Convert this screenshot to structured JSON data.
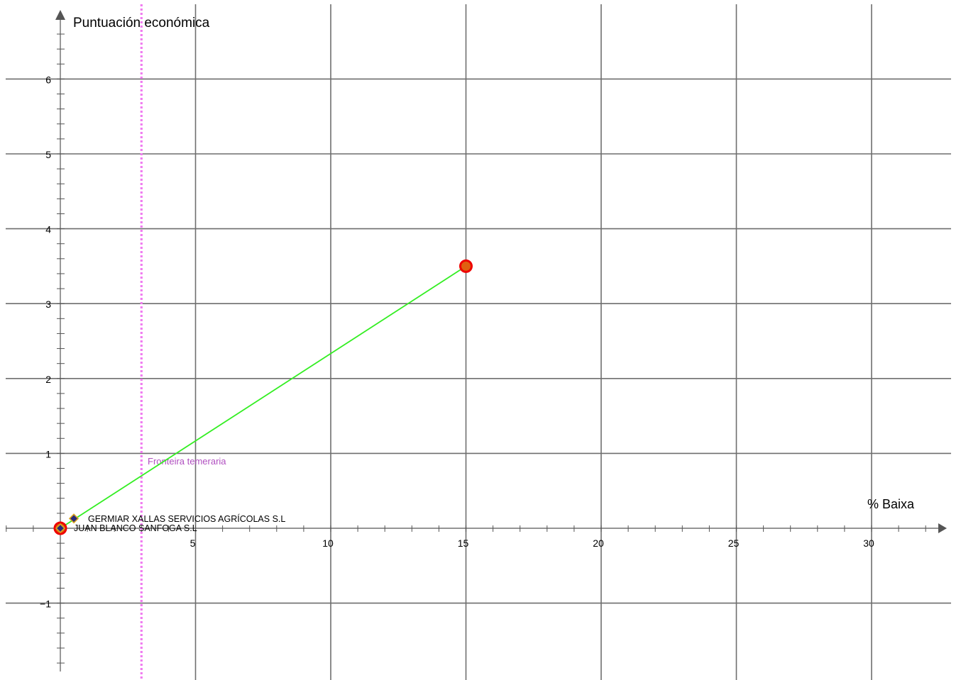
{
  "chart_data": {
    "type": "line",
    "xlabel": "% Baixa",
    "ylabel": "Puntuación económica",
    "xlim": [
      -2,
      33
    ],
    "ylim": [
      -2,
      7
    ],
    "x_ticks": [
      5,
      10,
      15,
      20,
      25,
      30
    ],
    "y_ticks": [
      -1,
      1,
      2,
      3,
      4,
      5,
      6
    ],
    "x_major_grid": [
      5,
      10,
      15,
      20,
      25,
      30
    ],
    "y_major_grid": [
      -1,
      1,
      2,
      3,
      4,
      5,
      6
    ],
    "x_minor_step": 1,
    "y_minor_step": 0.2,
    "grid": true,
    "series": [
      {
        "kind": "segment",
        "x": [
          0,
          15
        ],
        "y": [
          0,
          3.5
        ],
        "color": "#33ee22"
      }
    ],
    "endpoints": [
      {
        "x": 0,
        "y": 0
      },
      {
        "x": 15,
        "y": 3.5
      }
    ],
    "offers": [
      {
        "name": "GERMIAR XALLAS SERVICIOS AGRÍCOLAS S.L",
        "x": 0.5,
        "y": 0.13
      },
      {
        "name": "JUAN BLANCO SANFOGA S.L",
        "x": 0,
        "y": 0
      }
    ],
    "reference_line": {
      "label": "Fronteira temeraria",
      "x": 3,
      "color": "#f07cf0",
      "label_color": "#b04fc0"
    },
    "colors": {
      "grid": "#6e6e6e",
      "segment": "#33ee22",
      "endpoint_fill": "#e06010",
      "endpoint_ring": "#ee0000",
      "offer_fill": "#2a2a7a",
      "offer_stroke": "#daa520"
    }
  }
}
